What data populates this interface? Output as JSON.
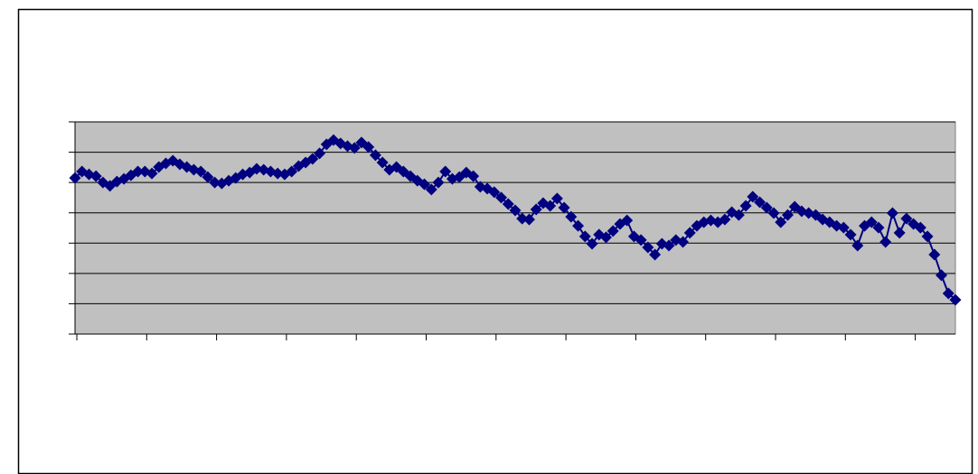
{
  "chart_data": {
    "type": "line",
    "marker": "diamond",
    "color": "#000080",
    "plot_background": "#c0c0c0",
    "grid": true,
    "ylim": [
      0,
      7
    ],
    "yticks": [
      0,
      1,
      2,
      3,
      4,
      5,
      6,
      7
    ],
    "xlim": [
      0,
      126
    ],
    "xticks": [
      0,
      10,
      20,
      30,
      40,
      50,
      60,
      70,
      80,
      90,
      100,
      110,
      120
    ],
    "values": [
      5.15,
      5.36,
      5.27,
      5.21,
      5.0,
      4.89,
      5.03,
      5.12,
      5.24,
      5.36,
      5.36,
      5.3,
      5.51,
      5.63,
      5.72,
      5.6,
      5.51,
      5.42,
      5.36,
      5.18,
      5.0,
      4.97,
      5.06,
      5.15,
      5.27,
      5.33,
      5.45,
      5.42,
      5.36,
      5.3,
      5.27,
      5.36,
      5.54,
      5.66,
      5.78,
      5.96,
      6.26,
      6.4,
      6.29,
      6.2,
      6.14,
      6.32,
      6.17,
      5.9,
      5.66,
      5.42,
      5.51,
      5.36,
      5.21,
      5.06,
      4.94,
      4.77,
      5.0,
      5.36,
      5.12,
      5.18,
      5.33,
      5.21,
      4.86,
      4.8,
      4.68,
      4.5,
      4.29,
      4.08,
      3.81,
      3.78,
      4.11,
      4.32,
      4.23,
      4.47,
      4.17,
      3.87,
      3.57,
      3.22,
      2.98,
      3.28,
      3.19,
      3.4,
      3.63,
      3.75,
      3.22,
      3.1,
      2.86,
      2.62,
      2.98,
      2.92,
      3.1,
      3.04,
      3.34,
      3.57,
      3.69,
      3.75,
      3.69,
      3.78,
      4.02,
      3.93,
      4.23,
      4.53,
      4.35,
      4.17,
      3.99,
      3.69,
      3.93,
      4.2,
      4.05,
      3.99,
      3.93,
      3.78,
      3.69,
      3.57,
      3.51,
      3.28,
      2.92,
      3.57,
      3.69,
      3.51,
      3.04,
      3.99,
      3.34,
      3.81,
      3.63,
      3.51,
      3.22,
      2.62,
      1.94,
      1.34,
      1.13
    ]
  }
}
